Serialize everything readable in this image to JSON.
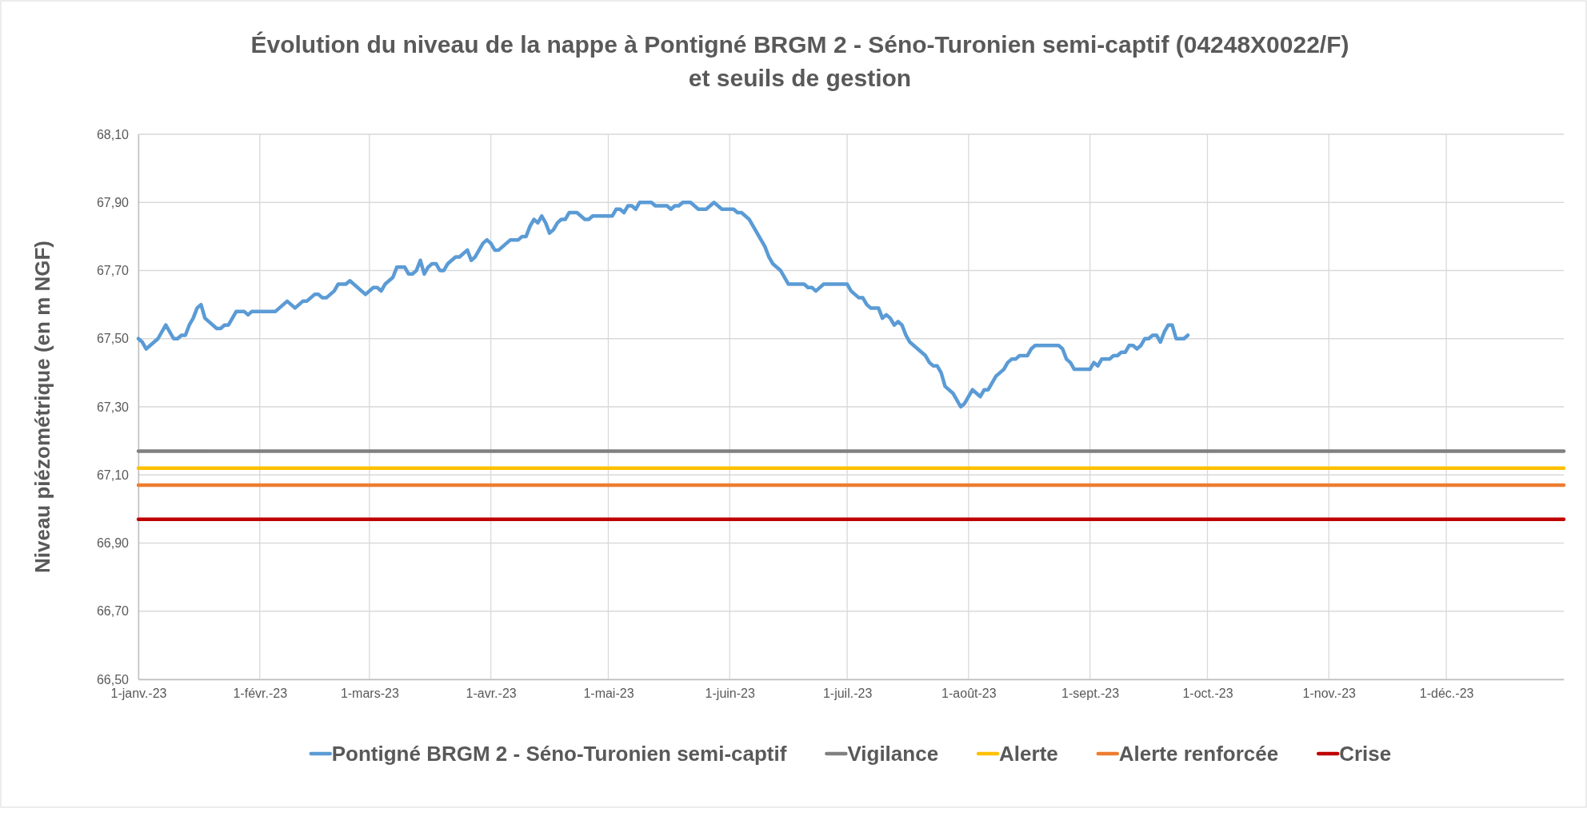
{
  "chart_data": {
    "type": "line",
    "title": "Évolution du niveau de la nappe à Pontigné BRGM 2 - Séno-Turonien semi-captif (04248X0022/F)\net seuils de gestion",
    "ylabel": "Niveau piézométrique (en m NGF)",
    "xlim": [
      "2023-01-01",
      "2023-12-31"
    ],
    "xticks": [
      {
        "value": "2023-01-01",
        "label": "1-janv.-23"
      },
      {
        "value": "2023-02-01",
        "label": "1-févr.-23"
      },
      {
        "value": "2023-03-01",
        "label": "1-mars-23"
      },
      {
        "value": "2023-04-01",
        "label": "1-avr.-23"
      },
      {
        "value": "2023-05-01",
        "label": "1-mai-23"
      },
      {
        "value": "2023-06-01",
        "label": "1-juin-23"
      },
      {
        "value": "2023-07-01",
        "label": "1-juil.-23"
      },
      {
        "value": "2023-08-01",
        "label": "1-août-23"
      },
      {
        "value": "2023-09-01",
        "label": "1-sept.-23"
      },
      {
        "value": "2023-10-01",
        "label": "1-oct.-23"
      },
      {
        "value": "2023-11-01",
        "label": "1-nov.-23"
      },
      {
        "value": "2023-12-01",
        "label": "1-déc.-23"
      }
    ],
    "ylim": [
      66.5,
      68.1
    ],
    "yticks": [
      {
        "value": 66.5,
        "label": "66,50"
      },
      {
        "value": 66.7,
        "label": "66,70"
      },
      {
        "value": 66.9,
        "label": "66,90"
      },
      {
        "value": 67.1,
        "label": "67,10"
      },
      {
        "value": 67.3,
        "label": "67,30"
      },
      {
        "value": 67.5,
        "label": "67,50"
      },
      {
        "value": 67.7,
        "label": "67,70"
      },
      {
        "value": 67.9,
        "label": "67,90"
      },
      {
        "value": 68.1,
        "label": "68,10"
      }
    ],
    "grid": true,
    "legend": "bottom",
    "marker": "none",
    "line_style": "solid",
    "series": [
      {
        "name": "Pontigné BRGM 2 - Séno-Turonien semi-captif",
        "color": "#5b9bd5",
        "x": [
          "2023-01-01",
          "2023-01-02",
          "2023-01-03",
          "2023-01-06",
          "2023-01-08",
          "2023-01-10",
          "2023-01-11",
          "2023-01-12",
          "2023-01-13",
          "2023-01-14",
          "2023-01-15",
          "2023-01-16",
          "2023-01-17",
          "2023-01-18",
          "2023-01-21",
          "2023-01-22",
          "2023-01-23",
          "2023-01-24",
          "2023-01-26",
          "2023-01-28",
          "2023-01-29",
          "2023-01-30",
          "2023-02-05",
          "2023-02-08",
          "2023-02-10",
          "2023-02-12",
          "2023-02-13",
          "2023-02-15",
          "2023-02-16",
          "2023-02-17",
          "2023-02-18",
          "2023-02-20",
          "2023-02-21",
          "2023-02-23",
          "2023-02-24",
          "2023-02-28",
          "2023-03-02",
          "2023-03-03",
          "2023-03-04",
          "2023-03-05",
          "2023-03-07",
          "2023-03-08",
          "2023-03-10",
          "2023-03-11",
          "2023-03-12",
          "2023-03-13",
          "2023-03-14",
          "2023-03-15",
          "2023-03-16",
          "2023-03-17",
          "2023-03-18",
          "2023-03-19",
          "2023-03-20",
          "2023-03-21",
          "2023-03-23",
          "2023-03-24",
          "2023-03-26",
          "2023-03-27",
          "2023-03-28",
          "2023-03-30",
          "2023-03-31",
          "2023-04-01",
          "2023-04-02",
          "2023-04-03",
          "2023-04-06",
          "2023-04-08",
          "2023-04-09",
          "2023-04-10",
          "2023-04-11",
          "2023-04-12",
          "2023-04-13",
          "2023-04-14",
          "2023-04-15",
          "2023-04-16",
          "2023-04-17",
          "2023-04-18",
          "2023-04-19",
          "2023-04-20",
          "2023-04-21",
          "2023-04-23",
          "2023-04-25",
          "2023-04-26",
          "2023-04-27",
          "2023-05-02",
          "2023-05-03",
          "2023-05-04",
          "2023-05-05",
          "2023-05-06",
          "2023-05-07",
          "2023-05-08",
          "2023-05-09",
          "2023-05-12",
          "2023-05-13",
          "2023-05-16",
          "2023-05-17",
          "2023-05-18",
          "2023-05-19",
          "2023-05-20",
          "2023-05-22",
          "2023-05-24",
          "2023-05-26",
          "2023-05-28",
          "2023-05-30",
          "2023-06-02",
          "2023-06-03",
          "2023-06-04",
          "2023-06-06",
          "2023-06-10",
          "2023-06-11",
          "2023-06-12",
          "2023-06-14",
          "2023-06-16",
          "2023-06-20",
          "2023-06-21",
          "2023-06-22",
          "2023-06-23",
          "2023-06-25",
          "2023-07-01",
          "2023-07-02",
          "2023-07-04",
          "2023-07-05",
          "2023-07-06",
          "2023-07-07",
          "2023-07-09",
          "2023-07-10",
          "2023-07-11",
          "2023-07-12",
          "2023-07-13",
          "2023-07-14",
          "2023-07-15",
          "2023-07-16",
          "2023-07-17",
          "2023-07-21",
          "2023-07-22",
          "2023-07-23",
          "2023-07-24",
          "2023-07-25",
          "2023-07-26",
          "2023-07-28",
          "2023-07-30",
          "2023-07-31",
          "2023-08-02",
          "2023-08-04",
          "2023-08-05",
          "2023-08-06",
          "2023-08-08",
          "2023-08-10",
          "2023-08-11",
          "2023-08-12",
          "2023-08-13",
          "2023-08-14",
          "2023-08-16",
          "2023-08-17",
          "2023-08-18",
          "2023-08-24",
          "2023-08-25",
          "2023-08-26",
          "2023-08-27",
          "2023-08-28",
          "2023-09-01",
          "2023-09-02",
          "2023-09-03",
          "2023-09-04",
          "2023-09-06",
          "2023-09-07",
          "2023-09-08",
          "2023-09-09",
          "2023-09-10",
          "2023-09-11",
          "2023-09-12",
          "2023-09-13",
          "2023-09-14",
          "2023-09-15",
          "2023-09-16",
          "2023-09-17",
          "2023-09-18",
          "2023-09-19",
          "2023-09-20",
          "2023-09-21",
          "2023-09-22",
          "2023-09-23",
          "2023-09-25",
          "2023-09-26"
        ],
        "values": [
          67.5,
          67.49,
          67.47,
          67.5,
          67.54,
          67.5,
          67.5,
          67.51,
          67.51,
          67.54,
          67.56,
          67.59,
          67.6,
          67.56,
          67.53,
          67.53,
          67.54,
          67.54,
          67.58,
          67.58,
          67.57,
          67.58,
          67.58,
          67.61,
          67.59,
          67.61,
          67.61,
          67.63,
          67.63,
          67.62,
          67.62,
          67.64,
          67.66,
          67.66,
          67.67,
          67.63,
          67.65,
          67.65,
          67.64,
          67.66,
          67.68,
          67.71,
          67.71,
          67.69,
          67.69,
          67.7,
          67.73,
          67.69,
          67.71,
          67.72,
          67.72,
          67.7,
          67.7,
          67.72,
          67.74,
          67.74,
          67.76,
          67.73,
          67.74,
          67.78,
          67.79,
          67.78,
          67.76,
          67.76,
          67.79,
          67.79,
          67.8,
          67.8,
          67.83,
          67.85,
          67.84,
          67.86,
          67.84,
          67.81,
          67.82,
          67.84,
          67.85,
          67.85,
          67.87,
          67.87,
          67.85,
          67.85,
          67.86,
          67.86,
          67.88,
          67.88,
          67.87,
          67.89,
          67.89,
          67.88,
          67.9,
          67.9,
          67.89,
          67.89,
          67.88,
          67.89,
          67.89,
          67.9,
          67.9,
          67.88,
          67.88,
          67.9,
          67.88,
          67.88,
          67.87,
          67.87,
          67.85,
          67.77,
          67.74,
          67.72,
          67.7,
          67.66,
          67.66,
          67.65,
          67.65,
          67.64,
          67.66,
          67.66,
          67.64,
          67.62,
          67.62,
          67.6,
          67.59,
          67.59,
          67.56,
          67.57,
          67.56,
          67.54,
          67.55,
          67.54,
          67.51,
          67.49,
          67.45,
          67.43,
          67.42,
          67.42,
          67.4,
          67.36,
          67.34,
          67.3,
          67.31,
          67.35,
          67.33,
          67.35,
          67.35,
          67.39,
          67.41,
          67.43,
          67.44,
          67.44,
          67.45,
          67.45,
          67.47,
          67.48,
          67.48,
          67.47,
          67.44,
          67.43,
          67.41,
          67.41,
          67.43,
          67.42,
          67.44,
          67.44,
          67.45,
          67.45,
          67.46,
          67.46,
          67.48,
          67.48,
          67.47,
          67.48,
          67.5,
          67.5,
          67.51,
          67.51,
          67.49,
          67.52,
          67.54,
          67.54,
          67.5,
          67.5,
          67.51
        ]
      },
      {
        "name": "Vigilance",
        "color": "#808080",
        "x": [
          "2023-01-01",
          "2023-12-31"
        ],
        "values": [
          67.17,
          67.17
        ]
      },
      {
        "name": "Alerte",
        "color": "#ffc000",
        "x": [
          "2023-01-01",
          "2023-12-31"
        ],
        "values": [
          67.12,
          67.12
        ]
      },
      {
        "name": "Alerte renforcée",
        "color": "#ed7d31",
        "x": [
          "2023-01-01",
          "2023-12-31"
        ],
        "values": [
          67.07,
          67.07
        ]
      },
      {
        "name": "Crise",
        "color": "#c00000",
        "x": [
          "2023-01-01",
          "2023-12-31"
        ],
        "values": [
          66.97,
          66.97
        ]
      }
    ]
  }
}
